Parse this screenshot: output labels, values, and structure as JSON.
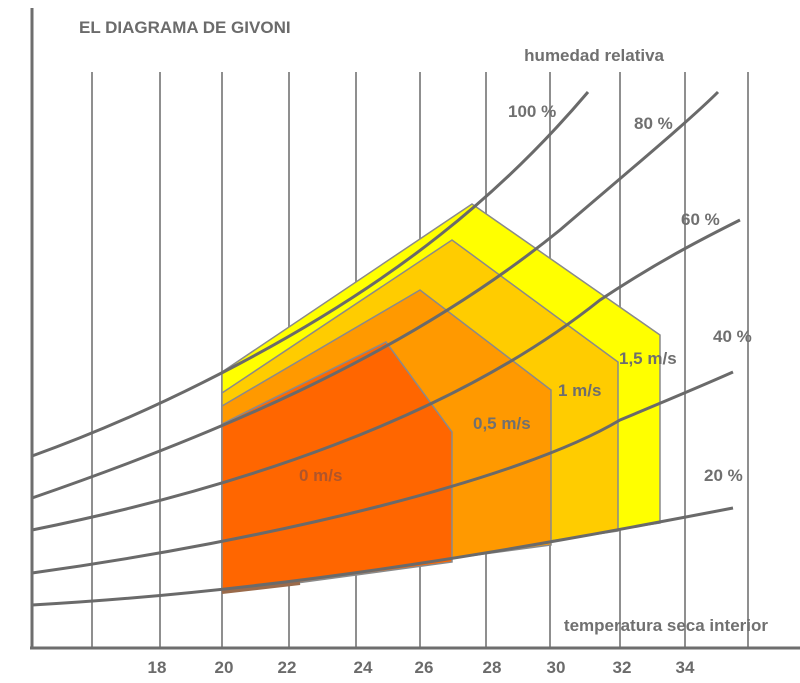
{
  "chart_data": {
    "type": "diagram",
    "title": "EL DIAGRAMA DE GIVONI",
    "xlabel": "temperatura seca interior",
    "ylabel": "humedad relativa",
    "x_ticks": [
      "18",
      "20",
      "22",
      "24",
      "26",
      "28",
      "30",
      "32",
      "34"
    ],
    "rh_curves": [
      {
        "rh": 100,
        "label": "100 %"
      },
      {
        "rh": 80,
        "label": "80 %"
      },
      {
        "rh": 60,
        "label": "60 %"
      },
      {
        "rh": 40,
        "label": "40 %"
      },
      {
        "rh": 20,
        "label": "20 %"
      }
    ],
    "comfort_zones": [
      {
        "air_speed": "1,5 m/s",
        "color": "#FFFF00"
      },
      {
        "air_speed": "1 m/s",
        "color": "#FFCC00"
      },
      {
        "air_speed": "0,5 m/s",
        "color": "#FF9900"
      },
      {
        "air_speed": "0 m/s",
        "color": "#FF6600"
      }
    ],
    "grid": true
  }
}
